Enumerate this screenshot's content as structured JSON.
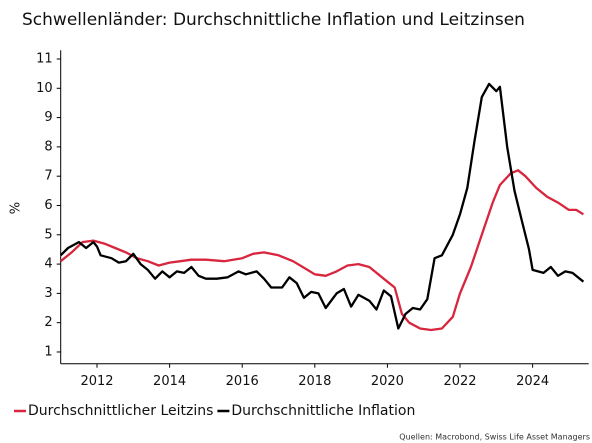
{
  "chart_data": {
    "type": "line",
    "title": "Schwellenländer: Durchschnittliche Inflation und Leitzinsen",
    "y_label": "%",
    "source": "Quellen: Macrobond, Swiss Life Asset Managers",
    "xlim": [
      2011,
      2025.6
    ],
    "ylim": [
      0.6,
      11.3
    ],
    "xticks": [
      2012,
      2014,
      2016,
      2018,
      2020,
      2022,
      2024
    ],
    "yticks": [
      1,
      2,
      3,
      4,
      5,
      6,
      7,
      8,
      9,
      10,
      11
    ],
    "grid": false,
    "legend": "bottom",
    "series": [
      {
        "name": "Durchschnittlicher Leitzins",
        "color": "#d7263d",
        "x": [
          2011.0,
          2011.3,
          2011.6,
          2011.9,
          2012.2,
          2012.5,
          2012.8,
          2013.1,
          2013.4,
          2013.7,
          2014.0,
          2014.3,
          2014.6,
          2015.0,
          2015.5,
          2016.0,
          2016.3,
          2016.6,
          2017.0,
          2017.4,
          2017.8,
          2018.0,
          2018.3,
          2018.6,
          2018.9,
          2019.2,
          2019.5,
          2019.8,
          2020.0,
          2020.2,
          2020.4,
          2020.6,
          2020.9,
          2021.2,
          2021.5,
          2021.8,
          2022.0,
          2022.3,
          2022.6,
          2022.9,
          2023.1,
          2023.4,
          2023.6,
          2023.8,
          2024.1,
          2024.4,
          2024.7,
          2025.0,
          2025.2,
          2025.4
        ],
        "values": [
          4.1,
          4.4,
          4.75,
          4.8,
          4.7,
          4.55,
          4.4,
          4.2,
          4.1,
          3.95,
          4.05,
          4.1,
          4.15,
          4.15,
          4.1,
          4.2,
          4.35,
          4.4,
          4.3,
          4.1,
          3.8,
          3.65,
          3.6,
          3.75,
          3.95,
          4.0,
          3.9,
          3.6,
          3.4,
          3.2,
          2.3,
          2.0,
          1.8,
          1.75,
          1.8,
          2.2,
          3.0,
          3.9,
          5.0,
          6.1,
          6.7,
          7.1,
          7.2,
          7.0,
          6.6,
          6.3,
          6.1,
          5.85,
          5.85,
          5.7
        ]
      },
      {
        "name": "Durchschnittliche Inflation",
        "color": "#000000",
        "x": [
          2011.0,
          2011.2,
          2011.5,
          2011.7,
          2011.9,
          2012.0,
          2012.1,
          2012.4,
          2012.6,
          2012.8,
          2013.0,
          2013.2,
          2013.4,
          2013.6,
          2013.8,
          2014.0,
          2014.2,
          2014.4,
          2014.6,
          2014.8,
          2015.0,
          2015.3,
          2015.6,
          2015.9,
          2016.1,
          2016.4,
          2016.6,
          2016.8,
          2017.1,
          2017.3,
          2017.5,
          2017.7,
          2017.9,
          2018.1,
          2018.3,
          2018.6,
          2018.8,
          2019.0,
          2019.2,
          2019.5,
          2019.7,
          2019.9,
          2020.1,
          2020.3,
          2020.5,
          2020.7,
          2020.9,
          2021.1,
          2021.3,
          2021.5,
          2021.8,
          2022.0,
          2022.2,
          2022.4,
          2022.6,
          2022.8,
          2023.0,
          2023.1,
          2023.3,
          2023.5,
          2023.7,
          2023.9,
          2024.0,
          2024.3,
          2024.5,
          2024.7,
          2024.9,
          2025.1,
          2025.4
        ],
        "values": [
          4.3,
          4.55,
          4.75,
          4.55,
          4.75,
          4.6,
          4.3,
          4.2,
          4.05,
          4.1,
          4.35,
          4.0,
          3.8,
          3.5,
          3.75,
          3.55,
          3.75,
          3.7,
          3.9,
          3.6,
          3.5,
          3.5,
          3.55,
          3.75,
          3.65,
          3.75,
          3.5,
          3.2,
          3.2,
          3.55,
          3.35,
          2.85,
          3.05,
          3.0,
          2.5,
          3.0,
          3.15,
          2.55,
          2.95,
          2.75,
          2.45,
          3.1,
          2.9,
          1.8,
          2.3,
          2.5,
          2.45,
          2.8,
          4.2,
          4.3,
          5.0,
          5.7,
          6.6,
          8.2,
          9.7,
          10.15,
          9.9,
          10.05,
          8.0,
          6.5,
          5.5,
          4.5,
          3.8,
          3.7,
          3.9,
          3.6,
          3.75,
          3.7,
          3.4
        ]
      }
    ]
  }
}
